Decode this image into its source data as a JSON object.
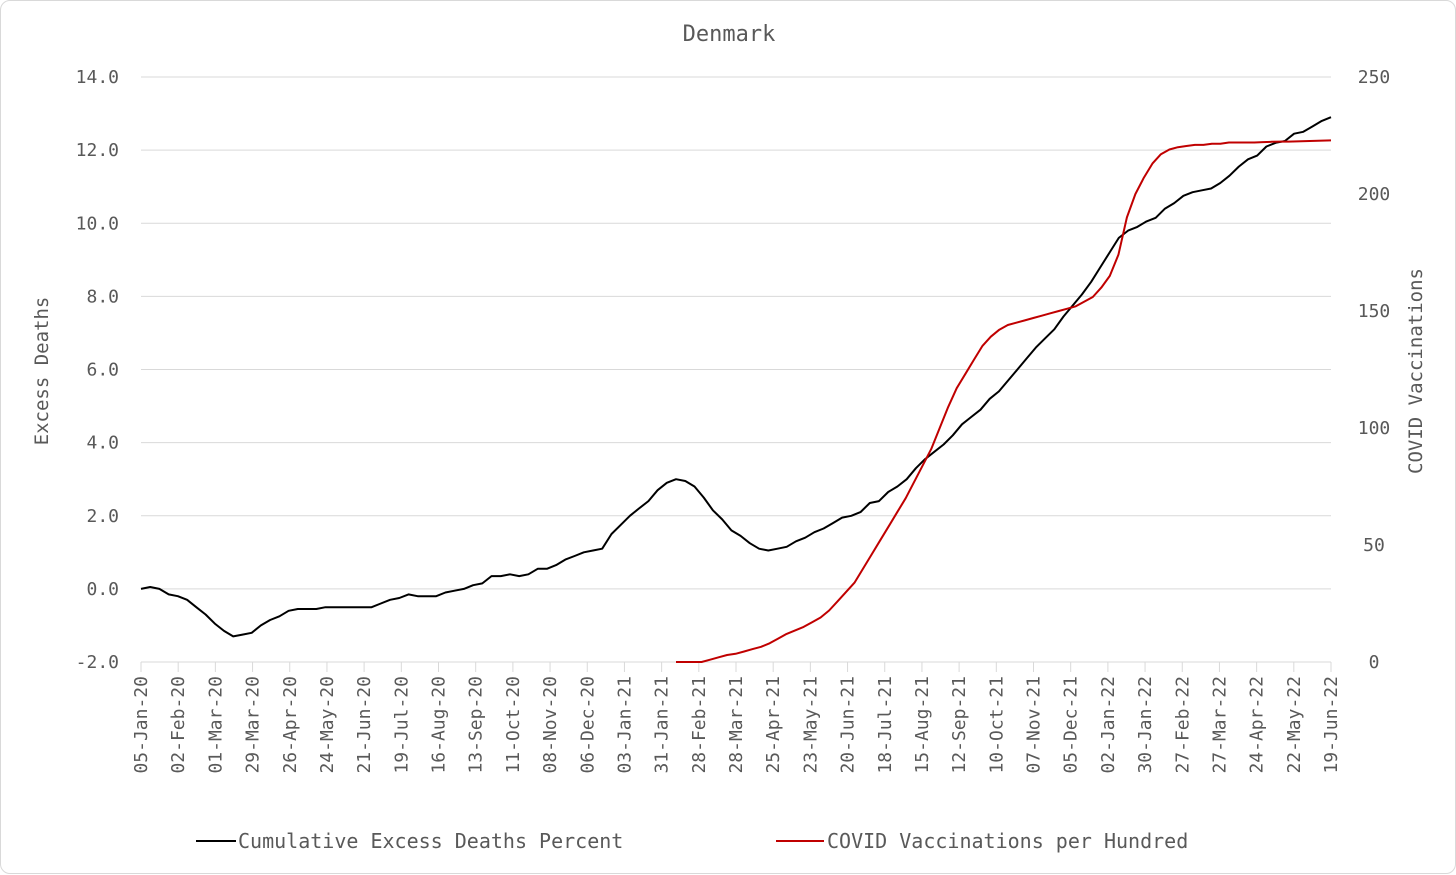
{
  "chart_data": {
    "type": "line",
    "title": "Denmark",
    "ylabel_left": "Excess Deaths",
    "ylabel_right": "COVID Vaccinations",
    "y_left_ticks": [
      "14.0",
      "12.0",
      "10.0",
      "8.0",
      "6.0",
      "4.0",
      "2.0",
      "0.0",
      "-2.0"
    ],
    "y_left_range": [
      -2.0,
      14.0
    ],
    "y_right_ticks": [
      "250",
      "200",
      "150",
      "100",
      "50",
      "0"
    ],
    "y_right_range": [
      0,
      250
    ],
    "x_tick_labels": [
      "05-Jan-20",
      "02-Feb-20",
      "01-Mar-20",
      "29-Mar-20",
      "26-Apr-20",
      "24-May-20",
      "21-Jun-20",
      "19-Jul-20",
      "16-Aug-20",
      "13-Sep-20",
      "11-Oct-20",
      "08-Nov-20",
      "06-Dec-20",
      "03-Jan-21",
      "31-Jan-21",
      "28-Feb-21",
      "28-Mar-21",
      "25-Apr-21",
      "23-May-21",
      "20-Jun-21",
      "18-Jul-21",
      "15-Aug-21",
      "12-Sep-21",
      "10-Oct-21",
      "07-Nov-21",
      "05-Dec-21",
      "02-Jan-22",
      "30-Jan-22",
      "27-Feb-22",
      "27-Mar-22",
      "24-Apr-22",
      "22-May-22",
      "19-Jun-22"
    ],
    "grid": "horizontal",
    "legend_position": "bottom",
    "colors": {
      "deaths": "#000000",
      "vaccinations": "#c00000",
      "grid": "#d9d9d9"
    },
    "series": [
      {
        "name": "Cumulative Excess Deaths Percent",
        "axis": "left",
        "x_week_index_note_removed": true,
        "values": [
          0.0,
          0.05,
          0.0,
          -0.15,
          -0.2,
          -0.3,
          -0.5,
          -0.7,
          -0.95,
          -1.15,
          -1.3,
          -1.25,
          -1.2,
          -1.0,
          -0.85,
          -0.75,
          -0.6,
          -0.55,
          -0.55,
          -0.55,
          -0.5,
          -0.5,
          -0.5,
          -0.5,
          -0.5,
          -0.5,
          -0.4,
          -0.3,
          -0.25,
          -0.15,
          -0.2,
          -0.2,
          -0.2,
          -0.1,
          -0.05,
          0.0,
          0.1,
          0.15,
          0.35,
          0.35,
          0.4,
          0.35,
          0.4,
          0.55,
          0.55,
          0.65,
          0.8,
          0.9,
          1.0,
          1.05,
          1.1,
          1.5,
          1.75,
          2.0,
          2.2,
          2.4,
          2.7,
          2.9,
          3.0,
          2.95,
          2.8,
          2.5,
          2.15,
          1.9,
          1.6,
          1.45,
          1.25,
          1.1,
          1.05,
          1.1,
          1.15,
          1.3,
          1.4,
          1.55,
          1.65,
          1.8,
          1.95,
          2.0,
          2.1,
          2.35,
          2.4,
          2.65,
          2.8,
          3.0,
          3.3,
          3.55,
          3.75,
          3.95,
          4.2,
          4.5,
          4.7,
          4.9,
          5.2,
          5.4,
          5.7,
          6.0,
          6.3,
          6.6,
          6.85,
          7.1,
          7.45,
          7.75,
          8.05,
          8.4,
          8.8,
          9.2,
          9.6,
          9.8,
          9.9,
          10.05,
          10.15,
          10.4,
          10.55,
          10.75,
          10.85,
          10.9,
          10.95,
          11.1,
          11.3,
          11.55,
          11.75,
          11.85,
          12.1,
          12.2,
          12.25,
          12.45,
          12.5,
          12.65,
          12.8,
          12.9
        ]
      },
      {
        "name": "COVID Vaccinations per Hundred",
        "axis": "right",
        "start_week_index": 58,
        "values": [
          0,
          0,
          0,
          0,
          1,
          2,
          3,
          3.5,
          4.5,
          5.5,
          6.5,
          8,
          10,
          12,
          13.5,
          15,
          17,
          19,
          22,
          26,
          30,
          34,
          40,
          46,
          52,
          58,
          64,
          70,
          77,
          84,
          91,
          100,
          109,
          117,
          123,
          129,
          135,
          139,
          142,
          144,
          145,
          146,
          147,
          148,
          149,
          150,
          151,
          152,
          154,
          156,
          160,
          165,
          174,
          190,
          200,
          207,
          213,
          217,
          219,
          220,
          220.5,
          221,
          221,
          221.5,
          221.5,
          222,
          222,
          222,
          222,
          222.2,
          222.3,
          222.4,
          222.4,
          222.5,
          222.6,
          222.7,
          222.8,
          222.9
        ]
      }
    ]
  }
}
